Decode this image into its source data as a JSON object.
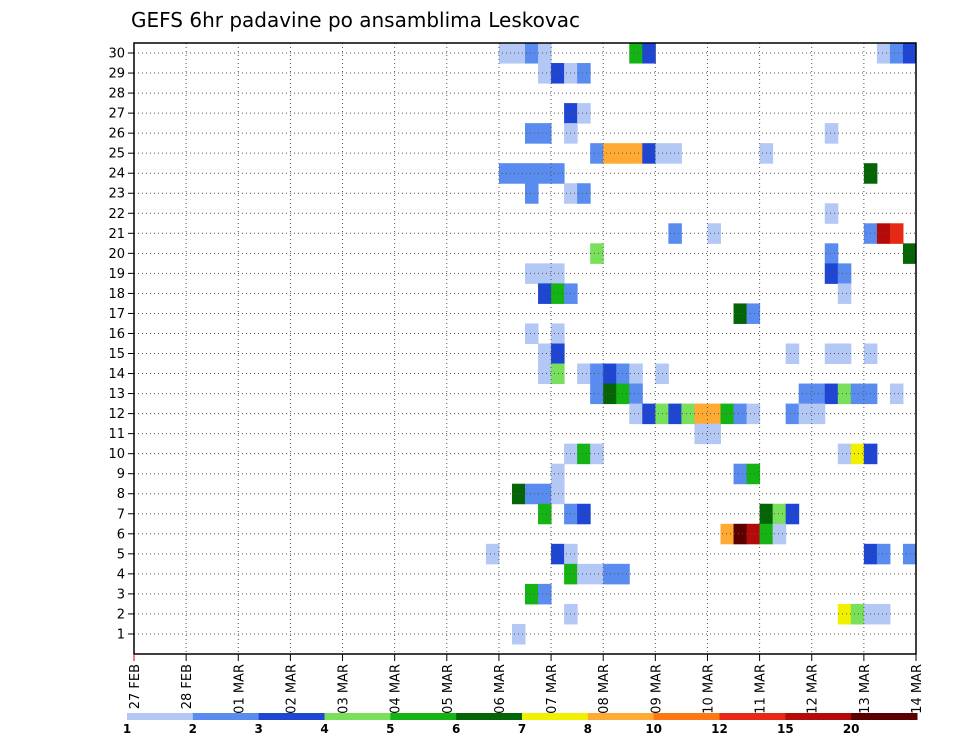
{
  "chart_data": {
    "type": "heatmap",
    "title": "GEFS 6hr padavine po ansamblima Leskovac",
    "x_tick_labels": [
      "27 FEB",
      "28 FEB",
      "01 MAR",
      "02 MAR",
      "03 MAR",
      "04 MAR",
      "05 MAR",
      "06 MAR",
      "07 MAR",
      "08 MAR",
      "09 MAR",
      "10 MAR",
      "11 MAR",
      "12 MAR",
      "13 MAR",
      "14 MAR"
    ],
    "y_tick_labels": [
      "1",
      "2",
      "3",
      "4",
      "5",
      "6",
      "7",
      "8",
      "9",
      "10",
      "11",
      "12",
      "13",
      "14",
      "15",
      "16",
      "17",
      "18",
      "19",
      "20",
      "21",
      "22",
      "23",
      "24",
      "25",
      "26",
      "27",
      "28",
      "29",
      "30"
    ],
    "x_units": "days (27 FEB = 0)",
    "xlim": [
      0,
      15
    ],
    "ylim": [
      0,
      30.5
    ],
    "grid": true,
    "legend": {
      "position": "bottom",
      "labels": [
        "1",
        "2",
        "3",
        "4",
        "5",
        "6",
        "7",
        "8",
        "10",
        "12",
        "15",
        "20"
      ],
      "colors": [
        "#b4c8f5",
        "#5a8cf0",
        "#1e46d2",
        "#78e05a",
        "#14b414",
        "#056405",
        "#f0f000",
        "#ffaa32",
        "#ff7814",
        "#e62814",
        "#b40a0a",
        "#5a0000"
      ]
    },
    "cells": [
      {
        "member": 30,
        "day": 7.0,
        "cls": 1
      },
      {
        "member": 30,
        "day": 7.25,
        "cls": 1
      },
      {
        "member": 30,
        "day": 7.5,
        "cls": 2
      },
      {
        "member": 30,
        "day": 7.75,
        "cls": 1
      },
      {
        "member": 30,
        "day": 9.5,
        "cls": 5
      },
      {
        "member": 30,
        "day": 9.75,
        "cls": 3
      },
      {
        "member": 30,
        "day": 14.25,
        "cls": 1
      },
      {
        "member": 30,
        "day": 14.5,
        "cls": 2
      },
      {
        "member": 30,
        "day": 14.75,
        "cls": 3
      },
      {
        "member": 29,
        "day": 7.75,
        "cls": 1
      },
      {
        "member": 29,
        "day": 8.0,
        "cls": 3
      },
      {
        "member": 29,
        "day": 8.25,
        "cls": 1
      },
      {
        "member": 29,
        "day": 8.5,
        "cls": 2
      },
      {
        "member": 27,
        "day": 8.25,
        "cls": 3
      },
      {
        "member": 27,
        "day": 8.5,
        "cls": 1
      },
      {
        "member": 26,
        "day": 7.5,
        "cls": 2
      },
      {
        "member": 26,
        "day": 7.75,
        "cls": 2
      },
      {
        "member": 26,
        "day": 8.25,
        "cls": 1
      },
      {
        "member": 26,
        "day": 13.25,
        "cls": 1
      },
      {
        "member": 25,
        "day": 8.75,
        "cls": 2
      },
      {
        "member": 25,
        "day": 9.0,
        "cls": 8
      },
      {
        "member": 25,
        "day": 9.25,
        "cls": 8
      },
      {
        "member": 25,
        "day": 9.5,
        "cls": 8
      },
      {
        "member": 25,
        "day": 9.75,
        "cls": 3
      },
      {
        "member": 25,
        "day": 10.0,
        "cls": 1
      },
      {
        "member": 25,
        "day": 10.25,
        "cls": 1
      },
      {
        "member": 25,
        "day": 12.0,
        "cls": 1
      },
      {
        "member": 24,
        "day": 7.0,
        "cls": 2
      },
      {
        "member": 24,
        "day": 7.25,
        "cls": 2
      },
      {
        "member": 24,
        "day": 7.5,
        "cls": 2
      },
      {
        "member": 24,
        "day": 7.75,
        "cls": 2
      },
      {
        "member": 24,
        "day": 8.0,
        "cls": 2
      },
      {
        "member": 24,
        "day": 14.0,
        "cls": 6
      },
      {
        "member": 23,
        "day": 7.5,
        "cls": 2
      },
      {
        "member": 23,
        "day": 8.25,
        "cls": 1
      },
      {
        "member": 23,
        "day": 8.5,
        "cls": 2
      },
      {
        "member": 22,
        "day": 13.25,
        "cls": 1
      },
      {
        "member": 21,
        "day": 10.25,
        "cls": 2
      },
      {
        "member": 21,
        "day": 11.0,
        "cls": 1
      },
      {
        "member": 21,
        "day": 14.0,
        "cls": 2
      },
      {
        "member": 21,
        "day": 14.25,
        "cls": 11
      },
      {
        "member": 21,
        "day": 14.5,
        "cls": 10
      },
      {
        "member": 20,
        "day": 8.75,
        "cls": 4
      },
      {
        "member": 20,
        "day": 13.25,
        "cls": 2
      },
      {
        "member": 20,
        "day": 14.75,
        "cls": 6
      },
      {
        "member": 19,
        "day": 7.5,
        "cls": 1
      },
      {
        "member": 19,
        "day": 7.75,
        "cls": 1
      },
      {
        "member": 19,
        "day": 8.0,
        "cls": 1
      },
      {
        "member": 19,
        "day": 13.25,
        "cls": 3
      },
      {
        "member": 19,
        "day": 13.5,
        "cls": 2
      },
      {
        "member": 18,
        "day": 7.75,
        "cls": 3
      },
      {
        "member": 18,
        "day": 8.0,
        "cls": 5
      },
      {
        "member": 18,
        "day": 8.25,
        "cls": 2
      },
      {
        "member": 18,
        "day": 13.5,
        "cls": 1
      },
      {
        "member": 17,
        "day": 11.5,
        "cls": 6
      },
      {
        "member": 17,
        "day": 11.75,
        "cls": 2
      },
      {
        "member": 16,
        "day": 7.5,
        "cls": 1
      },
      {
        "member": 16,
        "day": 8.0,
        "cls": 1
      },
      {
        "member": 15,
        "day": 7.75,
        "cls": 1
      },
      {
        "member": 15,
        "day": 8.0,
        "cls": 3
      },
      {
        "member": 15,
        "day": 12.5,
        "cls": 1
      },
      {
        "member": 15,
        "day": 13.25,
        "cls": 1
      },
      {
        "member": 15,
        "day": 13.5,
        "cls": 1
      },
      {
        "member": 15,
        "day": 14.0,
        "cls": 1
      },
      {
        "member": 14,
        "day": 7.75,
        "cls": 1
      },
      {
        "member": 14,
        "day": 8.0,
        "cls": 4
      },
      {
        "member": 14,
        "day": 8.5,
        "cls": 1
      },
      {
        "member": 14,
        "day": 8.75,
        "cls": 2
      },
      {
        "member": 14,
        "day": 9.0,
        "cls": 3
      },
      {
        "member": 14,
        "day": 9.25,
        "cls": 2
      },
      {
        "member": 14,
        "day": 9.5,
        "cls": 1
      },
      {
        "member": 14,
        "day": 10.0,
        "cls": 1
      },
      {
        "member": 13,
        "day": 8.75,
        "cls": 2
      },
      {
        "member": 13,
        "day": 9.0,
        "cls": 6
      },
      {
        "member": 13,
        "day": 9.25,
        "cls": 5
      },
      {
        "member": 13,
        "day": 9.5,
        "cls": 2
      },
      {
        "member": 13,
        "day": 12.75,
        "cls": 2
      },
      {
        "member": 13,
        "day": 13.0,
        "cls": 2
      },
      {
        "member": 13,
        "day": 13.25,
        "cls": 3
      },
      {
        "member": 13,
        "day": 13.5,
        "cls": 4
      },
      {
        "member": 13,
        "day": 13.75,
        "cls": 2
      },
      {
        "member": 13,
        "day": 14.0,
        "cls": 2
      },
      {
        "member": 13,
        "day": 14.5,
        "cls": 1
      },
      {
        "member": 12,
        "day": 9.5,
        "cls": 1
      },
      {
        "member": 12,
        "day": 9.75,
        "cls": 3
      },
      {
        "member": 12,
        "day": 10.0,
        "cls": 4
      },
      {
        "member": 12,
        "day": 10.25,
        "cls": 3
      },
      {
        "member": 12,
        "day": 10.5,
        "cls": 4
      },
      {
        "member": 12,
        "day": 10.75,
        "cls": 8
      },
      {
        "member": 12,
        "day": 11.0,
        "cls": 8
      },
      {
        "member": 12,
        "day": 11.25,
        "cls": 5
      },
      {
        "member": 12,
        "day": 11.5,
        "cls": 2
      },
      {
        "member": 12,
        "day": 11.75,
        "cls": 1
      },
      {
        "member": 12,
        "day": 12.5,
        "cls": 2
      },
      {
        "member": 12,
        "day": 12.75,
        "cls": 1
      },
      {
        "member": 12,
        "day": 13.0,
        "cls": 1
      },
      {
        "member": 11,
        "day": 10.75,
        "cls": 1
      },
      {
        "member": 11,
        "day": 11.0,
        "cls": 1
      },
      {
        "member": 10,
        "day": 8.25,
        "cls": 1
      },
      {
        "member": 10,
        "day": 8.5,
        "cls": 5
      },
      {
        "member": 10,
        "day": 8.75,
        "cls": 1
      },
      {
        "member": 10,
        "day": 13.5,
        "cls": 1
      },
      {
        "member": 10,
        "day": 13.75,
        "cls": 7
      },
      {
        "member": 10,
        "day": 14.0,
        "cls": 3
      },
      {
        "member": 9,
        "day": 8.0,
        "cls": 1
      },
      {
        "member": 9,
        "day": 11.5,
        "cls": 2
      },
      {
        "member": 9,
        "day": 11.75,
        "cls": 5
      },
      {
        "member": 8,
        "day": 7.25,
        "cls": 6
      },
      {
        "member": 8,
        "day": 7.5,
        "cls": 2
      },
      {
        "member": 8,
        "day": 7.75,
        "cls": 2
      },
      {
        "member": 8,
        "day": 8.0,
        "cls": 1
      },
      {
        "member": 7,
        "day": 7.75,
        "cls": 5
      },
      {
        "member": 7,
        "day": 8.25,
        "cls": 2
      },
      {
        "member": 7,
        "day": 8.5,
        "cls": 3
      },
      {
        "member": 7,
        "day": 12.0,
        "cls": 6
      },
      {
        "member": 7,
        "day": 12.25,
        "cls": 4
      },
      {
        "member": 7,
        "day": 12.5,
        "cls": 3
      },
      {
        "member": 6,
        "day": 11.25,
        "cls": 8
      },
      {
        "member": 6,
        "day": 11.5,
        "cls": 12
      },
      {
        "member": 6,
        "day": 11.75,
        "cls": 11
      },
      {
        "member": 6,
        "day": 12.0,
        "cls": 5
      },
      {
        "member": 6,
        "day": 12.25,
        "cls": 1
      },
      {
        "member": 5,
        "day": 6.75,
        "cls": 1
      },
      {
        "member": 5,
        "day": 8.0,
        "cls": 3
      },
      {
        "member": 5,
        "day": 8.25,
        "cls": 1
      },
      {
        "member": 5,
        "day": 14.0,
        "cls": 3
      },
      {
        "member": 5,
        "day": 14.25,
        "cls": 2
      },
      {
        "member": 5,
        "day": 14.75,
        "cls": 2
      },
      {
        "member": 4,
        "day": 8.25,
        "cls": 5
      },
      {
        "member": 4,
        "day": 8.5,
        "cls": 1
      },
      {
        "member": 4,
        "day": 8.75,
        "cls": 1
      },
      {
        "member": 4,
        "day": 9.0,
        "cls": 2
      },
      {
        "member": 4,
        "day": 9.25,
        "cls": 2
      },
      {
        "member": 3,
        "day": 7.5,
        "cls": 5
      },
      {
        "member": 3,
        "day": 7.75,
        "cls": 2
      },
      {
        "member": 2,
        "day": 8.25,
        "cls": 1
      },
      {
        "member": 2,
        "day": 13.5,
        "cls": 7
      },
      {
        "member": 2,
        "day": 13.75,
        "cls": 4
      },
      {
        "member": 2,
        "day": 14.0,
        "cls": 1
      },
      {
        "member": 2,
        "day": 14.25,
        "cls": 1
      },
      {
        "member": 1,
        "day": 7.25,
        "cls": 1
      }
    ]
  }
}
